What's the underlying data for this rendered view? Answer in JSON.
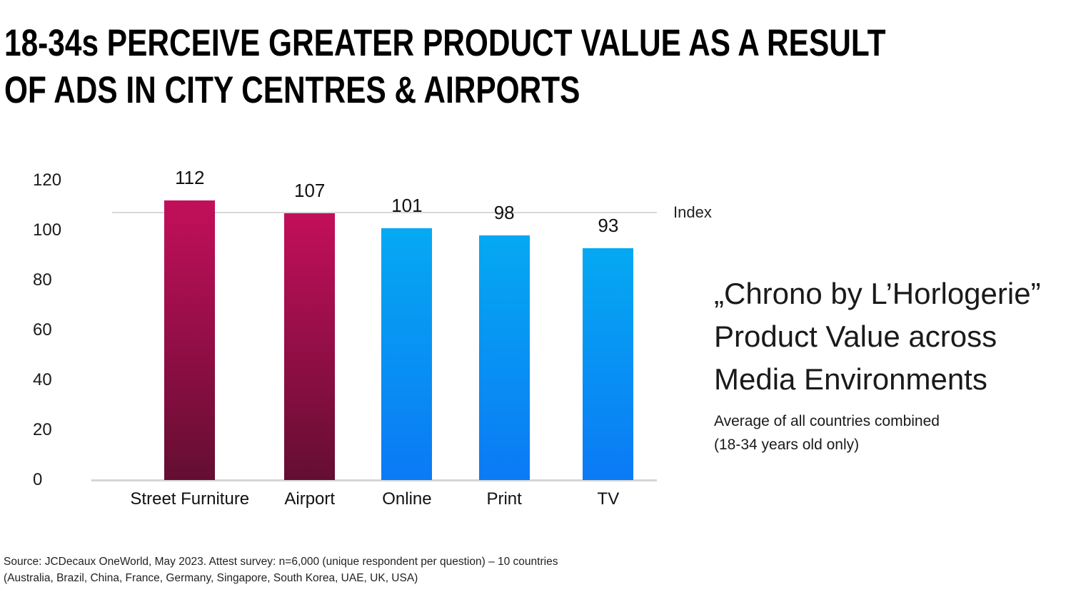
{
  "title": {
    "line1": "18-34s PERCEIVE GREATER PRODUCT VALUE AS A RESULT",
    "line2": "OF ADS IN CITY CENTRES & AIRPORTS"
  },
  "chart_data": {
    "type": "bar",
    "title": "18-34s perceive greater product value as a result of ads in city centres & airports",
    "categories": [
      "Street Furniture",
      "Airport",
      "Online",
      "Print",
      "TV"
    ],
    "values": [
      112,
      107,
      101,
      98,
      93
    ],
    "ylabel": "Index",
    "ylim": [
      0,
      120
    ],
    "yticks": [
      0,
      20,
      40,
      60,
      80,
      100,
      120
    ],
    "grid": "off",
    "index_line": {
      "label": "Index",
      "value": 107
    },
    "bar_gradients": [
      {
        "top": "#c30f5b",
        "bottom": "#640e32"
      },
      {
        "top": "#c30f5b",
        "bottom": "#640e32"
      },
      {
        "top": "#05a9f2",
        "bottom": "#0b7af5"
      },
      {
        "top": "#05a9f2",
        "bottom": "#0b7af5"
      },
      {
        "top": "#05a9f2",
        "bottom": "#0b7af5"
      }
    ]
  },
  "annotation": {
    "heading_lines": [
      "„Chrono by L’Horlogerie”",
      "Product Value across",
      "Media Environments"
    ],
    "sub_lines": [
      "Average of all countries combined",
      "(18-34 years old only)"
    ]
  },
  "source": {
    "line1": "Source: JCDecaux OneWorld, May 2023. Attest survey: n=6,000 (unique respondent per question) – 10 countries",
    "line2": "(Australia, Brazil, China, France, Germany, Singapore, South Korea, UAE, UK, USA)"
  },
  "colors": {
    "pink_top": "#c30f5b",
    "pink_bottom": "#640e32",
    "blue_top": "#05a9f2",
    "blue_bottom": "#0b7af5",
    "grid_line": "#d6d6d6",
    "title_text": "#000000",
    "body_text": "#1a1a1a"
  }
}
